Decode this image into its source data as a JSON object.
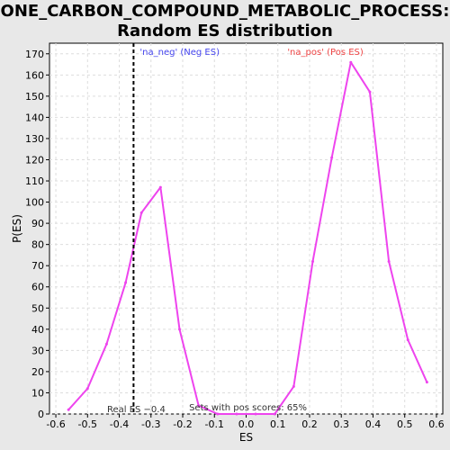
{
  "chart_data": {
    "type": "line",
    "title_lines": [
      "ONE_CARBON_COMPOUND_METABOLIC_PROCESS:",
      "Random ES distribution"
    ],
    "xlabel": "ES",
    "ylabel": "P(ES)",
    "xlim": [
      -0.62,
      0.62
    ],
    "ylim": [
      0,
      175
    ],
    "xticks": [
      -0.6,
      -0.5,
      -0.4,
      -0.3,
      -0.2,
      -0.1,
      0.0,
      0.1,
      0.2,
      0.3,
      0.4,
      0.5,
      0.6
    ],
    "xtick_labels": [
      "-0.6",
      "-0.5",
      "-0.4",
      "-0.3",
      "-0.2",
      "-0.1",
      "0.0",
      "0.1",
      "0.2",
      "0.3",
      "0.4",
      "0.5",
      "0.6"
    ],
    "yticks": [
      0,
      10,
      20,
      30,
      40,
      50,
      60,
      70,
      80,
      90,
      100,
      110,
      120,
      130,
      140,
      150,
      160,
      170
    ],
    "grid": true,
    "series": [
      {
        "color": "#ee44ee",
        "points": [
          [
            -0.56,
            2
          ],
          [
            -0.5,
            12
          ],
          [
            -0.44,
            33
          ],
          [
            -0.38,
            62
          ],
          [
            -0.33,
            95
          ],
          [
            -0.27,
            107
          ],
          [
            -0.21,
            40
          ],
          [
            -0.15,
            4
          ],
          [
            -0.09,
            0
          ],
          [
            -0.03,
            0
          ],
          [
            0.03,
            0
          ],
          [
            0.09,
            0
          ],
          [
            0.15,
            13
          ],
          [
            0.21,
            72
          ],
          [
            0.27,
            121
          ],
          [
            0.33,
            166
          ],
          [
            0.39,
            152
          ],
          [
            0.45,
            72
          ],
          [
            0.51,
            35
          ],
          [
            0.57,
            15
          ]
        ]
      }
    ],
    "real_es": {
      "x": -0.355,
      "label": "Real ES −0.4"
    },
    "annotations": {
      "neg_label": "'na_neg' (Neg ES)",
      "pos_label": "'na_pos' (Pos ES)",
      "sets_label": "Sets with pos scores: 65%"
    },
    "colors": {
      "neg": "#4444ee",
      "pos": "#ee4444",
      "line": "#ee44ee",
      "grid": "#dddddd"
    }
  }
}
